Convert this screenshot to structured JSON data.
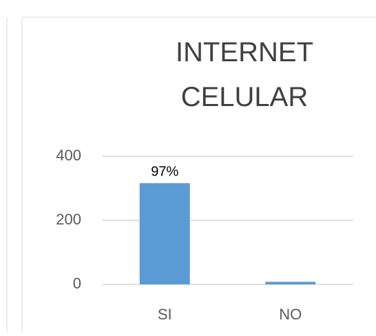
{
  "chart_data": {
    "type": "bar",
    "title": "INTERNET CELULAR",
    "categories": [
      "SI",
      "NO"
    ],
    "values": [
      316,
      8
    ],
    "value_labels": [
      "97%",
      null
    ],
    "color": "#5b9bd5",
    "ylim": [
      0,
      400
    ],
    "yticks": [
      0,
      200,
      400
    ],
    "grid": true
  }
}
